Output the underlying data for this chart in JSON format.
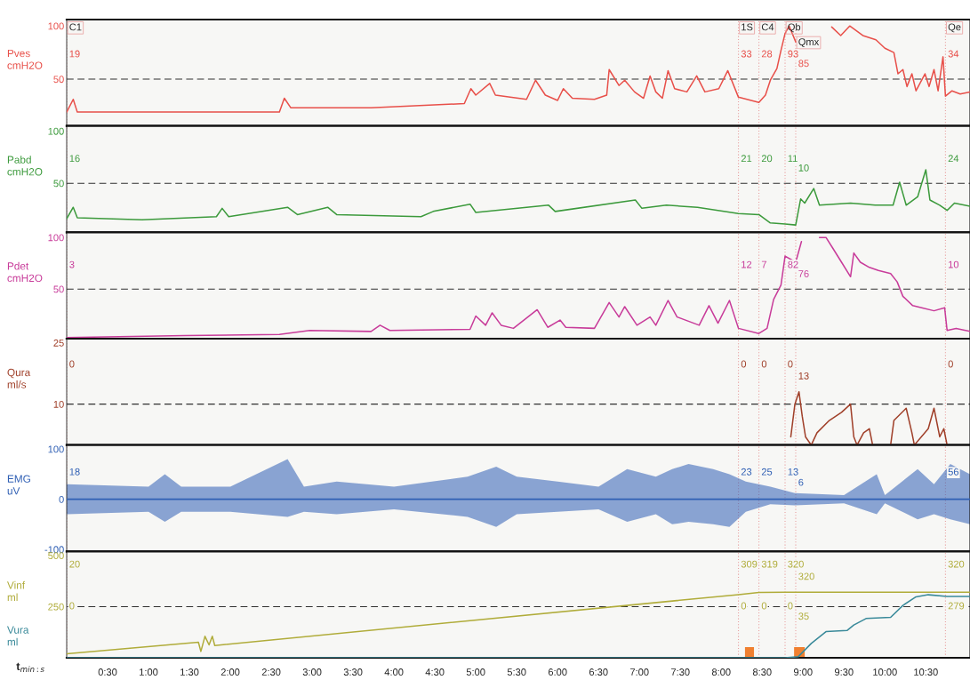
{
  "chart_data": [
    {
      "type": "line",
      "xlim": [
        0,
        11.04
      ],
      "ylim": [
        6,
        106
      ],
      "yticks": [
        50,
        100
      ],
      "tick_labels": "y",
      "series": [
        {
          "name": "Pves\ncmH2O",
          "color": "#e8504a",
          "x": [
            0,
            0.08,
            0.13,
            1.45,
            2.6,
            2.66,
            2.74,
            3.72,
            4.86,
            4.94,
            5.0,
            5.17,
            5.24,
            5.62,
            5.73,
            5.85,
            6.0,
            6.07,
            6.18,
            6.45,
            6.6,
            6.63,
            6.75,
            6.82,
            6.94,
            7.05,
            7.13,
            7.2,
            7.28,
            7.35,
            7.43,
            7.58,
            7.7,
            7.8,
            7.97,
            8.08,
            8.21,
            8.46,
            8.54,
            8.6,
            8.68,
            8.73,
            8.78,
            8.83,
            8.91,
            9.02,
            9.35,
            9.46,
            9.57,
            9.73,
            9.89,
            10.0,
            10.11,
            10.16,
            10.22,
            10.27,
            10.33,
            10.38,
            10.49,
            10.54,
            10.6,
            10.65,
            10.71,
            10.74,
            10.82,
            10.92,
            11.04
          ],
          "values": [
            19,
            31,
            19,
            19,
            19,
            32,
            23,
            23,
            27,
            41,
            35,
            46,
            35,
            31,
            49,
            35,
            30,
            41,
            32,
            31,
            35,
            59,
            44,
            49,
            38,
            32,
            53,
            38,
            32,
            58,
            41,
            38,
            53,
            38,
            41,
            58,
            33,
            28,
            35,
            49,
            60,
            77,
            93,
            100,
            85,
            null,
            99,
            91,
            100,
            91,
            87,
            79,
            75,
            55,
            59,
            43,
            55,
            39,
            55,
            43,
            59,
            39,
            71,
            34,
            39,
            36,
            38
          ]
        }
      ],
      "ref_lines": [
        {
          "axis": "y",
          "value": 50,
          "color": "#303030",
          "line_style": "dashed"
        },
        {
          "axis": "x",
          "value": 0,
          "label": "C1",
          "color": "#e8a0a0",
          "line_style": "dotted"
        },
        {
          "axis": "x",
          "value": 8.21,
          "label": "1S",
          "color": "#e8a0a0",
          "line_style": "dotted"
        },
        {
          "axis": "x",
          "value": 8.46,
          "label": "C4",
          "color": "#e8a0a0",
          "line_style": "dotted"
        },
        {
          "axis": "x",
          "value": 8.78,
          "label": "Qb",
          "color": "#e8a0a0",
          "line_style": "dotted"
        },
        {
          "axis": "x",
          "value": 8.91,
          "label": "Qmx",
          "color": "#e8a0a0",
          "line_style": "dotted"
        },
        {
          "axis": "x",
          "value": 10.74,
          "label": "Qe",
          "color": "#e8a0a0",
          "line_style": "dotted"
        }
      ],
      "annotations": [
        {
          "text": "19",
          "x": 0,
          "y": 73
        },
        {
          "text": "33",
          "x": 8.21,
          "y": 73
        },
        {
          "text": "28",
          "x": 8.46,
          "y": 73
        },
        {
          "text": "93",
          "x": 8.78,
          "y": 73
        },
        {
          "text": "85",
          "x": 8.91,
          "y": 64
        },
        {
          "text": "34",
          "x": 10.74,
          "y": 73
        }
      ]
    },
    {
      "type": "line",
      "xlim": [
        0,
        11.04
      ],
      "ylim": [
        3,
        105
      ],
      "yticks": [
        50,
        100
      ],
      "tick_labels": "y",
      "series": [
        {
          "name": "Pabd\ncmH2O",
          "color": "#3c9a3c",
          "x": [
            0,
            0.08,
            0.13,
            0.92,
            1.83,
            1.9,
            1.98,
            2.7,
            2.82,
            3.19,
            3.3,
            4.33,
            4.48,
            4.93,
            5.0,
            5.89,
            5.97,
            6.95,
            7.03,
            7.33,
            7.71,
            8.21,
            8.46,
            8.6,
            8.78,
            8.91,
            8.97,
            9.02,
            9.13,
            9.2,
            9.58,
            9.88,
            10.1,
            10.18,
            10.26,
            10.4,
            10.5,
            10.55,
            10.67,
            10.76,
            10.85,
            11.04
          ],
          "values": [
            16,
            27,
            17,
            15,
            18,
            26,
            18,
            27,
            20,
            27,
            20,
            18,
            23,
            30,
            22,
            29,
            23,
            34,
            26,
            29,
            27,
            21,
            20,
            12,
            11,
            10,
            35,
            31,
            45,
            29,
            31,
            29,
            29,
            51,
            29,
            37,
            63,
            34,
            29,
            24,
            31,
            28
          ]
        }
      ],
      "ref_lines": [
        {
          "axis": "y",
          "value": 50,
          "color": "#303030",
          "line_style": "dashed"
        },
        {
          "axis": "x",
          "value": 0,
          "color": "#e8a0a0",
          "line_style": "dotted"
        },
        {
          "axis": "x",
          "value": 8.21,
          "color": "#e8a0a0",
          "line_style": "dotted"
        },
        {
          "axis": "x",
          "value": 8.46,
          "color": "#e8a0a0",
          "line_style": "dotted"
        },
        {
          "axis": "x",
          "value": 8.78,
          "color": "#e8a0a0",
          "line_style": "dotted"
        },
        {
          "axis": "x",
          "value": 8.91,
          "color": "#e8a0a0",
          "line_style": "dotted"
        },
        {
          "axis": "x",
          "value": 10.74,
          "color": "#e8a0a0",
          "line_style": "dotted"
        }
      ],
      "annotations": [
        {
          "text": "16",
          "x": 0,
          "y": 73
        },
        {
          "text": "21",
          "x": 8.21,
          "y": 73
        },
        {
          "text": "20",
          "x": 8.46,
          "y": 73
        },
        {
          "text": "11",
          "x": 8.78,
          "y": 73
        },
        {
          "text": "10",
          "x": 8.91,
          "y": 64
        },
        {
          "text": "24",
          "x": 10.74,
          "y": 73
        }
      ]
    },
    {
      "type": "line",
      "xlim": [
        0,
        11.04
      ],
      "ylim": [
        2,
        105
      ],
      "yticks": [
        50,
        100
      ],
      "tick_labels": "y",
      "series": [
        {
          "name": "Pdet\ncmH2O",
          "color": "#c83c9a",
          "x": [
            0,
            1.45,
            2.6,
            2.97,
            3.72,
            3.83,
            3.95,
            4.93,
            5.0,
            5.12,
            5.2,
            5.31,
            5.46,
            5.75,
            5.88,
            6.03,
            6.1,
            6.45,
            6.63,
            6.75,
            6.82,
            6.97,
            7.13,
            7.2,
            7.35,
            7.46,
            7.73,
            7.85,
            7.96,
            8.1,
            8.21,
            8.46,
            8.56,
            8.64,
            8.73,
            8.78,
            8.91,
            8.98,
            9.05,
            9.2,
            9.28,
            9.36,
            9.47,
            9.58,
            9.62,
            9.7,
            9.81,
            9.92,
            10.07,
            10.15,
            10.22,
            10.34,
            10.45,
            10.6,
            10.73,
            10.76,
            10.87,
            11.04
          ],
          "values": [
            3,
            5,
            6,
            10,
            9,
            15,
            10,
            11,
            24,
            15,
            27,
            15,
            12,
            30,
            13,
            20,
            13,
            12,
            37,
            23,
            33,
            15,
            23,
            15,
            39,
            23,
            15,
            34,
            17,
            39,
            12,
            7,
            12,
            40,
            54,
            82,
            76,
            96,
            null,
            100,
            100,
            90,
            76,
            62,
            85,
            76,
            71,
            68,
            65,
            57,
            43,
            34,
            32,
            29,
            32,
            10,
            12,
            9
          ]
        }
      ],
      "ref_lines": [
        {
          "axis": "y",
          "value": 50,
          "color": "#303030",
          "line_style": "dashed"
        },
        {
          "axis": "x",
          "value": 0,
          "color": "#e8a0a0",
          "line_style": "dotted"
        },
        {
          "axis": "x",
          "value": 8.21,
          "color": "#e8a0a0",
          "line_style": "dotted"
        },
        {
          "axis": "x",
          "value": 8.46,
          "color": "#e8a0a0",
          "line_style": "dotted"
        },
        {
          "axis": "x",
          "value": 8.78,
          "color": "#e8a0a0",
          "line_style": "dotted"
        },
        {
          "axis": "x",
          "value": 8.91,
          "color": "#e8a0a0",
          "line_style": "dotted"
        },
        {
          "axis": "x",
          "value": 10.74,
          "color": "#e8a0a0",
          "line_style": "dotted"
        }
      ],
      "annotations": [
        {
          "text": "3",
          "x": 0,
          "y": 73
        },
        {
          "text": "12",
          "x": 8.21,
          "y": 73
        },
        {
          "text": "7",
          "x": 8.46,
          "y": 73
        },
        {
          "text": "82",
          "x": 8.78,
          "y": 73
        },
        {
          "text": "76",
          "x": 8.91,
          "y": 64
        },
        {
          "text": "10",
          "x": 10.74,
          "y": 73
        }
      ]
    },
    {
      "type": "line",
      "xlim": [
        0,
        11.04
      ],
      "ylim": [
        0,
        26
      ],
      "yticks": [
        10,
        25
      ],
      "tick_labels": "y",
      "series": [
        {
          "name": "Qura\nml/s",
          "color": "#a0402a",
          "x": [
            8.85,
            8.9,
            8.95,
            8.99,
            9.03,
            9.1,
            9.17,
            9.32,
            9.47,
            9.58,
            9.62,
            9.66,
            9.74,
            9.81,
            9.85,
            10.07,
            10.11,
            10.26,
            10.33,
            10.36,
            10.53,
            10.6,
            10.67,
            10.72,
            10.76
          ],
          "values": [
            2,
            10,
            13,
            7,
            2,
            0,
            3,
            6,
            8,
            10,
            2,
            0,
            3,
            4,
            0,
            0,
            6,
            9,
            3,
            0,
            4,
            9,
            2,
            4,
            0
          ]
        }
      ],
      "ref_lines": [
        {
          "axis": "y",
          "value": 10,
          "color": "#303030",
          "line_style": "dashed"
        },
        {
          "axis": "x",
          "value": 0,
          "color": "#e8a0a0",
          "line_style": "dotted"
        },
        {
          "axis": "x",
          "value": 8.21,
          "color": "#e8a0a0",
          "line_style": "dotted"
        },
        {
          "axis": "x",
          "value": 8.46,
          "color": "#e8a0a0",
          "line_style": "dotted"
        },
        {
          "axis": "x",
          "value": 8.78,
          "color": "#e8a0a0",
          "line_style": "dotted"
        },
        {
          "axis": "x",
          "value": 8.91,
          "color": "#e8a0a0",
          "line_style": "dotted"
        },
        {
          "axis": "x",
          "value": 10.74,
          "color": "#e8a0a0",
          "line_style": "dotted"
        }
      ],
      "annotations": [
        {
          "text": "0",
          "x": 0,
          "y": 19.6
        },
        {
          "text": "0",
          "x": 8.21,
          "y": 19.6
        },
        {
          "text": "0",
          "x": 8.46,
          "y": 19.6
        },
        {
          "text": "0",
          "x": 8.78,
          "y": 19.6
        },
        {
          "text": "13",
          "x": 8.91,
          "y": 16.7
        },
        {
          "text": "0",
          "x": 10.74,
          "y": 19.6
        }
      ]
    },
    {
      "type": "line",
      "xlim": [
        0,
        11.04
      ],
      "ylim": [
        -104,
        108
      ],
      "yticks": [
        -100,
        0,
        100
      ],
      "tick_labels": "y",
      "series": [
        {
          "name": "EMG\nuV",
          "color": "#2f5fb4",
          "x": [
            0,
            1.0,
            1.2,
            1.4,
            2.0,
            2.7,
            2.9,
            3.3,
            4.0,
            4.9,
            5.25,
            5.5,
            6.0,
            6.5,
            6.85,
            7.2,
            7.4,
            7.6,
            7.9,
            8.1,
            8.3,
            8.6,
            8.9,
            9.5,
            9.9,
            10.0,
            10.4,
            10.6,
            10.8,
            11.04
          ],
          "values": [
            0,
            0,
            0,
            0,
            0,
            0,
            0,
            0,
            0,
            0,
            0,
            0,
            0,
            0,
            0,
            0,
            0,
            0,
            0,
            0,
            0,
            0,
            0,
            0,
            0,
            0,
            0,
            0,
            0,
            0
          ],
          "upper": [
            30,
            25,
            50,
            25,
            25,
            80,
            25,
            35,
            25,
            45,
            65,
            45,
            35,
            25,
            60,
            45,
            60,
            70,
            60,
            50,
            35,
            25,
            12,
            8,
            50,
            8,
            60,
            30,
            70,
            50
          ],
          "lower": [
            -30,
            -25,
            -45,
            -25,
            -25,
            -35,
            -25,
            -30,
            -20,
            -35,
            -55,
            -30,
            -25,
            -20,
            -45,
            -30,
            -50,
            -45,
            -50,
            -55,
            -25,
            -10,
            -12,
            -8,
            -30,
            -8,
            -40,
            -30,
            -40,
            -50
          ]
        }
      ],
      "ref_lines": [
        {
          "axis": "x",
          "value": 0,
          "color": "#e8a0a0",
          "line_style": "dotted"
        },
        {
          "axis": "x",
          "value": 8.21,
          "color": "#e8a0a0",
          "line_style": "dotted"
        },
        {
          "axis": "x",
          "value": 8.46,
          "color": "#e8a0a0",
          "line_style": "dotted"
        },
        {
          "axis": "x",
          "value": 8.78,
          "color": "#e8a0a0",
          "line_style": "dotted"
        },
        {
          "axis": "x",
          "value": 8.91,
          "color": "#e8a0a0",
          "line_style": "dotted"
        },
        {
          "axis": "x",
          "value": 10.74,
          "color": "#e8a0a0",
          "line_style": "dotted"
        }
      ],
      "annotations": [
        {
          "text": "18",
          "x": 0,
          "y": 53
        },
        {
          "text": "23",
          "x": 8.21,
          "y": 53
        },
        {
          "text": "25",
          "x": 8.46,
          "y": 53
        },
        {
          "text": "13",
          "x": 8.78,
          "y": 53
        },
        {
          "text": "6",
          "x": 8.91,
          "y": 32
        },
        {
          "text": "56",
          "x": 10.74,
          "y": 53
        }
      ]
    },
    {
      "type": "line",
      "xlim": [
        0,
        11.04
      ],
      "ylim": [
        0,
        520
      ],
      "yticks": [
        250,
        500
      ],
      "xticks": [
        {
          "value": 0.5,
          "label": "0:30"
        },
        {
          "value": 1,
          "label": "1:00"
        },
        {
          "value": 1.5,
          "label": "1:30"
        },
        {
          "value": 2,
          "label": "2:00"
        },
        {
          "value": 2.5,
          "label": "2:30"
        },
        {
          "value": 3,
          "label": "3:00"
        },
        {
          "value": 3.5,
          "label": "3:30"
        },
        {
          "value": 4,
          "label": "4:00"
        },
        {
          "value": 4.5,
          "label": "4:30"
        },
        {
          "value": 5,
          "label": "5:00"
        },
        {
          "value": 5.5,
          "label": "5:30"
        },
        {
          "value": 6,
          "label": "6:00"
        },
        {
          "value": 6.5,
          "label": "6:30"
        },
        {
          "value": 7,
          "label": "7:00"
        },
        {
          "value": 7.5,
          "label": "7:30"
        },
        {
          "value": 8,
          "label": "8:00"
        },
        {
          "value": 8.5,
          "label": "8:30"
        },
        {
          "value": 9,
          "label": "9:00"
        },
        {
          "value": 9.5,
          "label": "9:30"
        },
        {
          "value": 10,
          "label": "10:00"
        },
        {
          "value": 10.5,
          "label": "10:30"
        }
      ],
      "xlabel": "t$_{min:s}$",
      "series": [
        {
          "name": "Vinf\nml",
          "color": "#b0ac3a",
          "x": [
            0,
            1.61,
            1.64,
            1.69,
            1.74,
            1.78,
            1.81,
            8.21,
            8.46,
            8.78,
            11.04
          ],
          "values": [
            20,
            76,
            31,
            105,
            63,
            105,
            60,
            309,
            319,
            320,
            320
          ]
        },
        {
          "name": "Vura\nml",
          "color": "#3a8a9a",
          "x": [
            0,
            8.21,
            8.46,
            8.78,
            8.94,
            9.1,
            9.28,
            9.54,
            9.62,
            9.77,
            10.07,
            10.22,
            10.38,
            10.53,
            10.76,
            11.04
          ],
          "values": [
            0,
            0,
            0,
            0,
            5,
            70,
            128,
            134,
            160,
            192,
            198,
            256,
            298,
            308,
            300,
            300
          ]
        }
      ],
      "ref_lines": [
        {
          "axis": "y",
          "value": 250,
          "color": "#303030",
          "line_style": "dashed"
        },
        {
          "axis": "x",
          "value": 0,
          "color": "#e8a0a0",
          "line_style": "dotted"
        },
        {
          "axis": "x",
          "value": 8.21,
          "color": "#e8a0a0",
          "line_style": "dotted"
        },
        {
          "axis": "x",
          "value": 8.46,
          "color": "#e8a0a0",
          "line_style": "dotted"
        },
        {
          "axis": "x",
          "value": 8.78,
          "color": "#e8a0a0",
          "line_style": "dotted"
        },
        {
          "axis": "x",
          "value": 8.91,
          "color": "#e8a0a0",
          "line_style": "dotted"
        },
        {
          "axis": "x",
          "value": 10.74,
          "color": "#e8a0a0",
          "line_style": "dotted"
        }
      ],
      "bands": [
        {
          "axis": "x",
          "from": 8.29,
          "to": 8.4,
          "color": "#f08030"
        },
        {
          "axis": "x",
          "from": 8.89,
          "to": 9.02,
          "color": "#f08030"
        }
      ],
      "annotations": [
        {
          "text": "20",
          "x": 0,
          "y": 454
        },
        {
          "text": "309",
          "x": 8.21,
          "y": 454
        },
        {
          "text": "319",
          "x": 8.46,
          "y": 454
        },
        {
          "text": "320",
          "x": 8.78,
          "y": 454
        },
        {
          "text": "320",
          "x": 8.91,
          "y": 394
        },
        {
          "text": "320",
          "x": 10.74,
          "y": 454
        },
        {
          "text": "0",
          "x": 0,
          "y": 250
        },
        {
          "text": "0",
          "x": 8.21,
          "y": 250
        },
        {
          "text": "0",
          "x": 8.46,
          "y": 250
        },
        {
          "text": "0",
          "x": 8.78,
          "y": 250
        },
        {
          "text": "35",
          "x": 8.91,
          "y": 199
        },
        {
          "text": "279",
          "x": 10.74,
          "y": 250
        }
      ]
    }
  ]
}
